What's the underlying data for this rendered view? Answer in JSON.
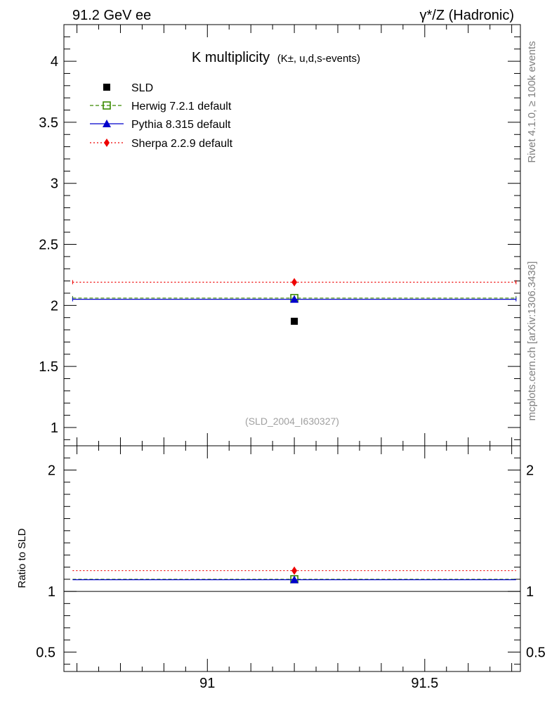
{
  "header": {
    "left": "91.2 GeV ee",
    "right": "γ*/Z (Hadronic)"
  },
  "side_text": {
    "rivet": "Rivet 4.1.0, ≥ 100k events",
    "mcplots": "mcplots.cern.ch [arXiv:1306.3436]"
  },
  "chart_data": [
    {
      "panel": "main",
      "type": "scatter",
      "title": "K multiplicity",
      "title_suffix": "(K±, u,d,s-events)",
      "watermark": "(SLD_2004_I630327)",
      "xlabel": "",
      "ylabel": "",
      "xlim": [
        90.67,
        91.72
      ],
      "ylim": [
        0.85,
        4.3
      ],
      "x_ticks": [
        91,
        91.5
      ],
      "x_tick_labels": [
        "91",
        "91.5"
      ],
      "y_ticks": [
        1,
        1.5,
        2,
        2.5,
        3,
        3.5,
        4
      ],
      "y_tick_labels": [
        "1",
        "1.5",
        "2",
        "2.5",
        "3",
        "3.5",
        "4"
      ],
      "x_range": [
        90.69,
        91.71
      ],
      "series": [
        {
          "name": "SLD",
          "style": "data",
          "marker": "square-filled",
          "color": "#000000",
          "x": 91.2,
          "y": 1.87
        },
        {
          "name": "Herwig 7.2.1 default",
          "style": "dashed",
          "marker": "square-open",
          "color": "#3a8a00",
          "x": 91.2,
          "y": 2.06
        },
        {
          "name": "Pythia 8.315 default",
          "style": "solid",
          "marker": "triangle",
          "color": "#0000cc",
          "x": 91.2,
          "y": 2.05
        },
        {
          "name": "Sherpa 2.2.9 default",
          "style": "dotted",
          "marker": "diamond",
          "color": "#ee0000",
          "x": 91.2,
          "y": 2.19
        }
      ]
    },
    {
      "panel": "ratio",
      "type": "scatter",
      "ylabel": "Ratio to SLD",
      "xlim": [
        90.67,
        91.72
      ],
      "ylim": [
        0.34,
        2.2
      ],
      "y_ticks": [
        0.5,
        1,
        2
      ],
      "y_tick_labels": [
        "0.5",
        "1",
        "2"
      ],
      "reference": 1.0,
      "series": [
        {
          "name": "Herwig 7.2.1 default",
          "value": 1.1
        },
        {
          "name": "Pythia 8.315 default",
          "value": 1.096
        },
        {
          "name": "Sherpa 2.2.9 default",
          "value": 1.171
        }
      ]
    }
  ]
}
